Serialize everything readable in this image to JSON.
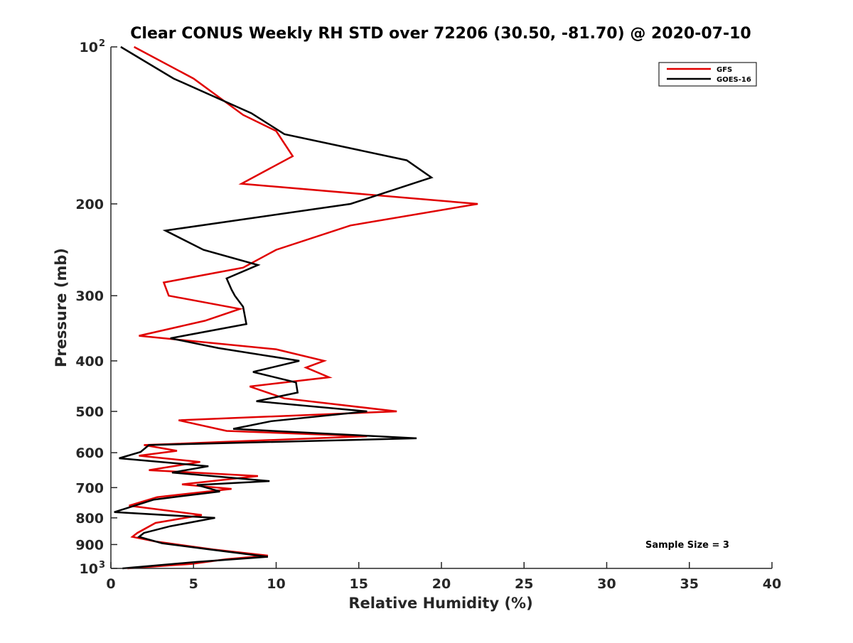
{
  "chart_data": {
    "type": "line",
    "title": "Clear CONUS Weekly RH STD over 72206 (30.50, -81.70) @ 2020-07-10",
    "xlabel": "Relative Humidity (%)",
    "ylabel": "Pressure (mb)",
    "xlim": [
      0,
      40
    ],
    "ylim": [
      100,
      1000
    ],
    "y_scale": "log",
    "y_reversed": true,
    "grid": false,
    "legend_position": "top-right",
    "x_ticks": [
      "0",
      "5",
      "10",
      "15",
      "20",
      "25",
      "30",
      "35",
      "40"
    ],
    "x_tick_values": [
      0,
      5,
      10,
      15,
      20,
      25,
      30,
      35,
      40
    ],
    "y_ticks": [
      {
        "value": 100,
        "label": "10",
        "sup": "2"
      },
      {
        "value": 200,
        "label": "200",
        "sup": ""
      },
      {
        "value": 300,
        "label": "300",
        "sup": ""
      },
      {
        "value": 400,
        "label": "400",
        "sup": ""
      },
      {
        "value": 500,
        "label": "500",
        "sup": ""
      },
      {
        "value": 600,
        "label": "600",
        "sup": ""
      },
      {
        "value": 700,
        "label": "700",
        "sup": ""
      },
      {
        "value": 800,
        "label": "800",
        "sup": ""
      },
      {
        "value": 900,
        "label": "900",
        "sup": ""
      },
      {
        "value": 1000,
        "label": "10",
        "sup": "3"
      }
    ],
    "annotation": "Sample Size = 3",
    "series": [
      {
        "name": "GFS",
        "color": "#e00000",
        "points": [
          [
            1.4,
            100
          ],
          [
            5.0,
            115
          ],
          [
            8.0,
            135
          ],
          [
            10.0,
            145
          ],
          [
            11.0,
            162
          ],
          [
            7.9,
            183
          ],
          [
            22.2,
            200
          ],
          [
            14.5,
            220
          ],
          [
            10.0,
            245
          ],
          [
            8.0,
            265
          ],
          [
            3.2,
            283
          ],
          [
            3.5,
            300
          ],
          [
            7.8,
            318
          ],
          [
            5.7,
            335
          ],
          [
            1.7,
            358
          ],
          [
            10.0,
            380
          ],
          [
            12.9,
            400
          ],
          [
            11.8,
            412
          ],
          [
            13.2,
            430
          ],
          [
            8.4,
            448
          ],
          [
            10.5,
            472
          ],
          [
            17.3,
            500
          ],
          [
            4.1,
            520
          ],
          [
            7.0,
            545
          ],
          [
            15.5,
            558
          ],
          [
            2.0,
            580
          ],
          [
            4.0,
            595
          ],
          [
            1.7,
            608
          ],
          [
            5.4,
            625
          ],
          [
            2.3,
            648
          ],
          [
            8.9,
            665
          ],
          [
            4.3,
            690
          ],
          [
            7.3,
            704
          ],
          [
            2.8,
            730
          ],
          [
            1.1,
            758
          ],
          [
            5.5,
            790
          ],
          [
            2.7,
            818
          ],
          [
            1.6,
            855
          ],
          [
            1.3,
            870
          ],
          [
            2.7,
            888
          ],
          [
            6.2,
            920
          ],
          [
            9.5,
            945
          ],
          [
            7.0,
            960
          ],
          [
            4.9,
            980
          ],
          [
            1.0,
            1000
          ]
        ]
      },
      {
        "name": "GOES-16",
        "color": "#000000",
        "points": [
          [
            0.6,
            100
          ],
          [
            3.8,
            115
          ],
          [
            8.5,
            134
          ],
          [
            10.5,
            147
          ],
          [
            17.9,
            165
          ],
          [
            19.4,
            178
          ],
          [
            14.5,
            200
          ],
          [
            3.3,
            225
          ],
          [
            5.6,
            245
          ],
          [
            8.9,
            262
          ],
          [
            7.0,
            278
          ],
          [
            7.3,
            292
          ],
          [
            7.5,
            300
          ],
          [
            8.0,
            315
          ],
          [
            8.2,
            340
          ],
          [
            3.6,
            362
          ],
          [
            6.5,
            378
          ],
          [
            11.4,
            400
          ],
          [
            8.6,
            420
          ],
          [
            11.2,
            440
          ],
          [
            11.3,
            460
          ],
          [
            8.8,
            478
          ],
          [
            15.5,
            500
          ],
          [
            9.7,
            522
          ],
          [
            7.4,
            540
          ],
          [
            18.5,
            563
          ],
          [
            2.3,
            580
          ],
          [
            1.8,
            598
          ],
          [
            0.5,
            615
          ],
          [
            5.9,
            637
          ],
          [
            3.7,
            655
          ],
          [
            9.6,
            680
          ],
          [
            5.2,
            692
          ],
          [
            6.6,
            712
          ],
          [
            2.6,
            738
          ],
          [
            0.2,
            780
          ],
          [
            6.3,
            800
          ],
          [
            3.6,
            830
          ],
          [
            2.0,
            855
          ],
          [
            1.7,
            870
          ],
          [
            3.1,
            895
          ],
          [
            6.0,
            920
          ],
          [
            9.5,
            950
          ],
          [
            5.2,
            972
          ],
          [
            0.7,
            1000
          ]
        ]
      }
    ]
  }
}
